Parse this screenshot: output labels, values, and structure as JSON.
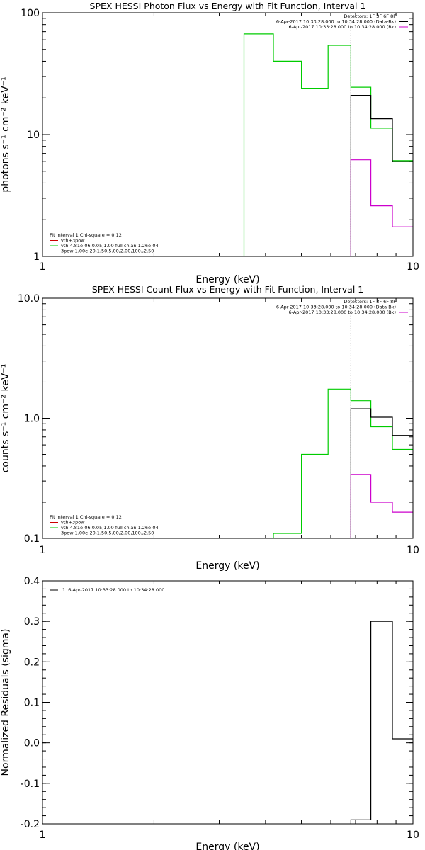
{
  "chart_data": [
    {
      "type": "line",
      "title": "SPEX HESSI Photon Flux vs Energy with Fit Function, Interval 1",
      "xlabel": "Energy (keV)",
      "ylabel": "photons s⁻¹ cm⁻² keV⁻¹",
      "xscale": "log",
      "yscale": "log",
      "xlim": [
        1,
        10
      ],
      "ylim": [
        1,
        100
      ],
      "xticks": [
        "1",
        "10"
      ],
      "yticks": [
        "1",
        "10",
        "100"
      ],
      "grid": false,
      "vline_x": 6.8,
      "legend_top": {
        "placement": "top-right",
        "lines": [
          {
            "text": "Detectors: 1F 3F 6F 8F",
            "color": null
          },
          {
            "text": "6-Apr-2017 10:33:28.000 to 10:34:28.000 (Data-Bk)",
            "color": "#000000"
          },
          {
            "text": "6-Apr-2017 10:33:28.000 to 10:34:28.000 (Bk)",
            "color": "#cc00cc"
          }
        ]
      },
      "legend_bottom": {
        "placement": "bottom-left",
        "lines": [
          {
            "text": "Fit Interval 1    Chi-square = 0.12",
            "color": null
          },
          {
            "text": "vth+3pow",
            "color": "#cc0000"
          },
          {
            "text": "vth 4.81e-06,0.05,1.00  full chian 1.26e-04",
            "color": "#00cc00"
          },
          {
            "text": "3pow 1.00e-20,1.50,5.00,2.00,100.,2.50",
            "color": "#cc9900"
          }
        ]
      },
      "series": [
        {
          "color": "#00cc00",
          "edges": [
            3.5,
            4.2,
            5.0,
            5.9,
            6.8,
            7.7,
            8.8,
            10.0
          ],
          "values": [
            67,
            40,
            24,
            54,
            24.5,
            11.3,
            6.1
          ]
        },
        {
          "color": "#000000",
          "edges": [
            6.8,
            7.7,
            8.8,
            10.0
          ],
          "values": [
            21,
            13.5,
            6.0
          ]
        },
        {
          "color": "#cc00cc",
          "edges": [
            6.8,
            7.7,
            8.8,
            10.0
          ],
          "values": [
            6.2,
            2.6,
            1.75
          ]
        }
      ]
    },
    {
      "type": "line",
      "title": "SPEX HESSI Count Flux vs Energy with Fit Function, Interval 1",
      "xlabel": "Energy (keV)",
      "ylabel": "counts s⁻¹ cm⁻² keV⁻¹",
      "xscale": "log",
      "yscale": "log",
      "xlim": [
        1,
        10
      ],
      "ylim": [
        0.1,
        10
      ],
      "xticks": [
        "1",
        "10"
      ],
      "yticks": [
        "0.1",
        "1.0",
        "10.0"
      ],
      "grid": false,
      "vline_x": 6.8,
      "legend_top": {
        "placement": "top-right",
        "lines": [
          {
            "text": "Detectors: 1F 3F 6F 8F",
            "color": null
          },
          {
            "text": "6-Apr-2017 10:33:28.000 to 10:34:28.000 (Data-Bk)",
            "color": "#000000"
          },
          {
            "text": "6-Apr-2017 10:33:28.000 to 10:34:28.000 (Bk)",
            "color": "#cc00cc"
          }
        ]
      },
      "legend_bottom": {
        "placement": "bottom-left",
        "lines": [
          {
            "text": "Fit Interval 1    Chi-square = 0.12",
            "color": null
          },
          {
            "text": "vth+3pow",
            "color": "#cc0000"
          },
          {
            "text": "vth 4.81e-06,0.05,1.00  full chian 1.26e-04",
            "color": "#00cc00"
          },
          {
            "text": "3pow 1.00e-20,1.50,5.00,2.00,100.,2.50",
            "color": "#cc9900"
          }
        ]
      },
      "series": [
        {
          "color": "#00cc00",
          "edges": [
            4.2,
            5.0,
            5.9,
            6.8,
            7.7,
            8.8,
            10.0
          ],
          "values": [
            0.11,
            0.5,
            1.75,
            1.4,
            0.85,
            0.55
          ]
        },
        {
          "color": "#000000",
          "edges": [
            6.8,
            7.7,
            8.8,
            10.0
          ],
          "values": [
            1.2,
            1.02,
            0.72
          ]
        },
        {
          "color": "#cc00cc",
          "edges": [
            6.8,
            7.7,
            8.8,
            10.0
          ],
          "values": [
            0.34,
            0.2,
            0.165
          ]
        }
      ]
    },
    {
      "type": "line",
      "title": "",
      "xlabel": "Energy (keV)",
      "ylabel": "Normalized Residuals (sigma)",
      "xscale": "log",
      "yscale": "linear",
      "xlim": [
        1,
        10
      ],
      "ylim": [
        -0.2,
        0.4
      ],
      "xticks": [
        "1",
        "10"
      ],
      "yticks": [
        "-0.2",
        "-0.1",
        "0.0",
        "0.1",
        "0.2",
        "0.3",
        "0.4"
      ],
      "grid": false,
      "legend_top": {
        "placement": "top-left",
        "lines": [
          {
            "text": "1.  6-Apr-2017 10:33:28.000 to 10:34:28.000",
            "color": "#000000"
          }
        ]
      },
      "series": [
        {
          "color": "#000000",
          "edges": [
            6.8,
            7.7,
            8.8,
            10.0
          ],
          "values": [
            -0.19,
            0.3,
            0.01
          ]
        }
      ]
    }
  ]
}
